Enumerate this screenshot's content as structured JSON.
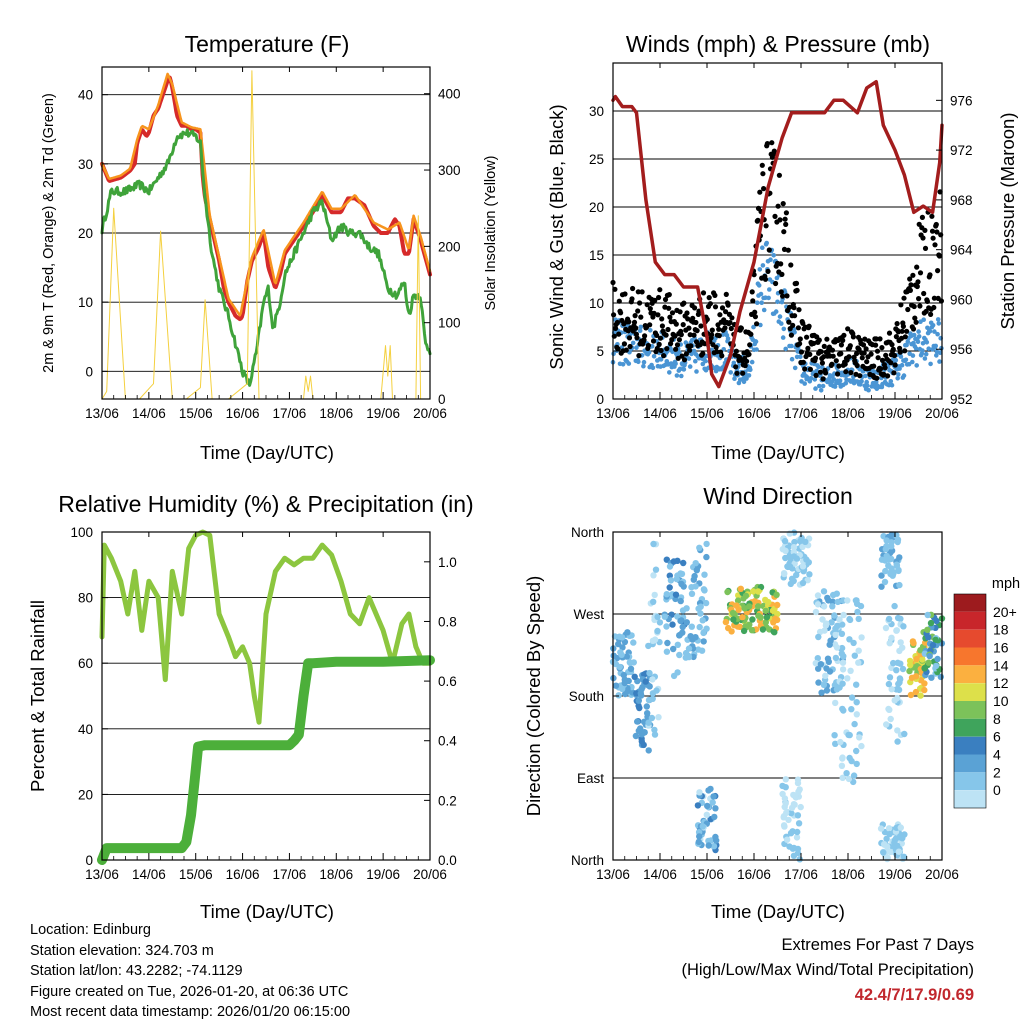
{
  "colors": {
    "temp2m": "#d62a2a",
    "temp9m": "#f7941d",
    "dewpoint": "#3fa33a",
    "solar": "#f4d03f",
    "wind": "#4a95d4",
    "gust": "#000000",
    "pressure": "#a31d1d",
    "rh": "#8cc63f",
    "precip": "#4caf3a",
    "highlight": "#c1272d",
    "speed_scale": [
      "#bde3f5",
      "#86c6ea",
      "#5aa2d5",
      "#3a7fc0",
      "#3fa45c",
      "#7cc25a",
      "#dde04a",
      "#fbb040",
      "#f7762d",
      "#e64a2e",
      "#c8262b",
      "#9d1b1e"
    ]
  },
  "chart_data": [
    {
      "id": "temperature",
      "type": "line",
      "title": "Temperature (F)",
      "xlabel": "Time (Day/UTC)",
      "ylabel": "2m & 9m T (Red, Orange) & 2m Td (Green)",
      "ylabel_right": "Solar Insolation (Yellow)",
      "x_ticks": [
        "13/06",
        "14/06",
        "15/06",
        "16/06",
        "17/06",
        "18/06",
        "19/06",
        "20/06"
      ],
      "xlim": [
        0,
        7
      ],
      "ylim": [
        -4,
        44
      ],
      "y_ticks": [
        0,
        10,
        20,
        30,
        40
      ],
      "y2lim": [
        0,
        435
      ],
      "y2_ticks": [
        0,
        100,
        200,
        300,
        400
      ],
      "series": [
        {
          "name": "2m T",
          "color_key": "temp2m",
          "x": [
            0,
            0.15,
            0.4,
            0.6,
            0.7,
            0.75,
            0.85,
            0.95,
            1.0,
            1.1,
            1.2,
            1.3,
            1.4,
            1.45,
            1.5,
            1.6,
            1.7,
            1.8,
            1.9,
            2.0,
            2.1,
            2.15,
            2.2,
            2.3,
            2.4,
            2.5,
            2.6,
            2.7,
            2.85,
            2.95,
            3.0,
            3.1,
            3.2,
            3.35,
            3.45,
            3.55,
            3.7,
            3.8,
            3.9,
            4.1,
            4.3,
            4.5,
            4.7,
            4.9,
            5.1,
            5.25,
            5.4,
            5.6,
            5.8,
            5.95,
            6.1,
            6.25,
            6.35,
            6.45,
            6.55,
            6.65,
            6.8,
            7.0
          ],
          "values": [
            30,
            27.5,
            28,
            29,
            30,
            33,
            35,
            34,
            34.5,
            37,
            38,
            40,
            42,
            42.5,
            41,
            37,
            35.5,
            35.5,
            35,
            35,
            34.5,
            28,
            25,
            22,
            19,
            16,
            12,
            10,
            8,
            7.5,
            8,
            13,
            16,
            18,
            20,
            15,
            12,
            14,
            17,
            19,
            21,
            23,
            25.5,
            23,
            23,
            25,
            25,
            24,
            21,
            20,
            20,
            22,
            21,
            17,
            17,
            22,
            19,
            14
          ]
        },
        {
          "name": "9m T",
          "color_key": "temp9m",
          "x": [
            0,
            0.15,
            0.4,
            0.6,
            0.75,
            0.85,
            1.0,
            1.2,
            1.4,
            1.5,
            1.7,
            1.9,
            2.1,
            2.3,
            2.5,
            2.7,
            2.95,
            3.2,
            3.45,
            3.7,
            3.9,
            4.3,
            4.7,
            4.9,
            5.1,
            5.4,
            5.8,
            6.1,
            6.35,
            6.55,
            6.65,
            6.8,
            7.0
          ],
          "values": [
            30,
            27.8,
            28.3,
            29.3,
            33.5,
            35.5,
            35,
            38.5,
            43,
            41.5,
            36,
            35.3,
            35,
            22.5,
            16.5,
            10.5,
            8,
            16.5,
            20.5,
            12.5,
            17.5,
            21.5,
            26,
            23.5,
            23.5,
            25.5,
            21.5,
            20.5,
            21.5,
            17.5,
            22.5,
            19.5,
            14.5
          ]
        },
        {
          "name": "2m Td",
          "color_key": "dewpoint",
          "x": [
            0,
            0.2,
            0.5,
            0.8,
            1.0,
            1.2,
            1.4,
            1.6,
            1.8,
            2.0,
            2.1,
            2.2,
            2.35,
            2.5,
            2.7,
            2.85,
            3.0,
            3.15,
            3.3,
            3.45,
            3.55,
            3.65,
            3.8,
            3.9,
            4.1,
            4.3,
            4.5,
            4.7,
            4.9,
            5.1,
            5.3,
            5.5,
            5.7,
            5.9,
            6.1,
            6.3,
            6.45,
            6.55,
            6.65,
            6.8,
            6.9,
            7.0
          ],
          "values": [
            20.5,
            26,
            26,
            27,
            26,
            28,
            30,
            34,
            34.5,
            34,
            33,
            25,
            17,
            12,
            8,
            4,
            0,
            -2,
            3,
            10,
            12,
            6,
            10,
            14,
            17,
            20,
            23,
            24.5,
            19,
            21,
            20,
            20,
            18,
            17,
            12,
            11,
            13,
            8,
            11,
            11,
            4,
            3
          ]
        },
        {
          "name": "Solar",
          "color_key": "solar",
          "axis": "right",
          "x": [
            0,
            0.1,
            0.25,
            0.5,
            0.65,
            0.8,
            1.1,
            1.25,
            1.5,
            1.65,
            1.8,
            2.1,
            2.2,
            2.35,
            2.6,
            2.7,
            3.1,
            3.2,
            3.35,
            3.5,
            3.6,
            4.3,
            4.35,
            4.4,
            4.45,
            4.5,
            5.95,
            6.05,
            6.1,
            6.15,
            6.2,
            6.7,
            6.75,
            6.8,
            7.0
          ],
          "values": [
            0,
            10,
            250,
            0,
            0,
            0,
            20,
            220,
            0,
            0,
            0,
            15,
            130,
            0,
            0,
            0,
            20,
            430,
            0,
            0,
            0,
            0,
            30,
            10,
            30,
            0,
            0,
            70,
            30,
            70,
            0,
            0,
            240,
            0,
            0
          ]
        }
      ]
    },
    {
      "id": "winds",
      "type": "scatter+line",
      "title": "Winds (mph) & Pressure (mb)",
      "xlabel": "Time (Day/UTC)",
      "ylabel": "Sonic Wind & Gust (Blue, Black)",
      "ylabel_right": "Station Pressure (Maroon)",
      "x_ticks": [
        "13/06",
        "14/06",
        "15/06",
        "16/06",
        "17/06",
        "18/06",
        "19/06",
        "20/06"
      ],
      "xlim": [
        0,
        7
      ],
      "ylim": [
        0,
        35
      ],
      "y_ticks": [
        0,
        5,
        10,
        15,
        20,
        25,
        30
      ],
      "y2lim": [
        952,
        979
      ],
      "y2_ticks": [
        952,
        956,
        960,
        964,
        968,
        972,
        976
      ],
      "series": [
        {
          "name": "Sonic Wind",
          "color_key": "wind",
          "x": [
            0,
            0.5,
            1.0,
            1.5,
            2.0,
            2.4,
            2.6,
            2.9,
            3.2,
            3.5,
            4.0,
            4.5,
            5.0,
            5.5,
            6.0,
            6.5,
            7.0
          ],
          "values": [
            6,
            5.5,
            5,
            4,
            5,
            5,
            3,
            3,
            13,
            11,
            3,
            2,
            3,
            2,
            3,
            6,
            6
          ]
        },
        {
          "name": "Gust",
          "color_key": "gust",
          "x": [
            0,
            0.5,
            1.0,
            1.5,
            2.0,
            2.4,
            2.6,
            2.9,
            3.2,
            3.5,
            4.0,
            4.5,
            5.0,
            5.5,
            6.0,
            6.5,
            7.0
          ],
          "values": [
            8.5,
            8,
            8,
            7,
            8,
            8,
            5,
            5,
            20,
            19,
            6,
            4,
            5,
            4,
            5,
            13,
            16
          ]
        },
        {
          "name": "Pressure",
          "color_key": "pressure",
          "axis": "right",
          "x": [
            0,
            0.05,
            0.2,
            0.4,
            0.5,
            0.7,
            0.9,
            1.1,
            1.3,
            1.5,
            1.8,
            2.0,
            2.1,
            2.25,
            2.5,
            2.7,
            3.0,
            3.3,
            3.6,
            3.8,
            4.0,
            4.3,
            4.5,
            4.7,
            4.9,
            5.2,
            5.4,
            5.6,
            5.75,
            6.0,
            6.2,
            6.4,
            6.6,
            6.8,
            6.95,
            7.0
          ],
          "values": [
            976,
            976.3,
            975.5,
            975.5,
            975,
            968,
            963,
            962,
            962,
            961,
            961,
            957,
            954,
            953,
            955.5,
            959,
            963,
            969,
            973,
            975,
            975,
            975,
            975,
            976,
            976,
            975,
            977,
            977.5,
            974,
            972,
            970,
            967,
            967.5,
            967,
            971,
            974
          ]
        }
      ]
    },
    {
      "id": "humidity",
      "type": "line",
      "title": "Relative Humidity (%) & Precipitation (in)",
      "xlabel": "Time (Day/UTC)",
      "ylabel": "Percent & Total Rainfall",
      "x_ticks": [
        "13/06",
        "14/06",
        "15/06",
        "16/06",
        "17/06",
        "18/06",
        "19/06",
        "20/06"
      ],
      "xlim": [
        0,
        7
      ],
      "ylim": [
        0,
        100
      ],
      "y_ticks": [
        0,
        20,
        40,
        60,
        80,
        100
      ],
      "y2lim": [
        0,
        1.1
      ],
      "y2_ticks": [
        "0.0",
        "0.2",
        "0.4",
        "0.6",
        "0.8",
        "1.0"
      ],
      "series": [
        {
          "name": "Relative Humidity",
          "color_key": "rh",
          "x": [
            0,
            0.05,
            0.2,
            0.4,
            0.55,
            0.7,
            0.85,
            1.0,
            1.2,
            1.35,
            1.5,
            1.7,
            1.85,
            2.0,
            2.15,
            2.3,
            2.5,
            2.7,
            2.85,
            3.0,
            3.15,
            3.25,
            3.35,
            3.5,
            3.7,
            3.9,
            4.1,
            4.3,
            4.5,
            4.7,
            4.9,
            5.1,
            5.3,
            5.5,
            5.7,
            5.85,
            6.0,
            6.2,
            6.4,
            6.55,
            6.7,
            6.85,
            7.0
          ],
          "values": [
            68,
            96,
            92,
            85,
            75,
            88,
            70,
            85,
            80,
            55,
            88,
            75,
            95,
            99,
            100,
            99,
            75,
            68,
            62,
            65,
            60,
            50,
            42,
            75,
            88,
            92,
            90,
            92,
            92,
            96,
            93,
            85,
            75,
            72,
            80,
            75,
            70,
            60,
            72,
            75,
            65,
            60,
            60
          ]
        },
        {
          "name": "Total Rainfall",
          "color_key": "precip",
          "axis": "right",
          "x": [
            0,
            0.1,
            1.7,
            1.8,
            1.9,
            2.0,
            2.05,
            2.2,
            4.0,
            4.1,
            4.2,
            4.3,
            4.4,
            4.5,
            5.0,
            6.0,
            7.0
          ],
          "values": [
            0,
            0.04,
            0.04,
            0.06,
            0.15,
            0.3,
            0.38,
            0.385,
            0.385,
            0.4,
            0.42,
            0.55,
            0.66,
            0.66,
            0.665,
            0.665,
            0.67
          ]
        }
      ]
    },
    {
      "id": "direction",
      "type": "scatter",
      "title": "Wind Direction",
      "xlabel": "Time (Day/UTC)",
      "ylabel": "Direction (Colored By Speed)",
      "x_ticks": [
        "13/06",
        "14/06",
        "15/06",
        "16/06",
        "17/06",
        "18/06",
        "19/06",
        "20/06"
      ],
      "xlim": [
        0,
        7
      ],
      "ylim": [
        0,
        360
      ],
      "y_ticks": [
        "North",
        "East",
        "South",
        "West",
        "North"
      ],
      "legend_title": "mph",
      "legend_labels": [
        "20+",
        "18",
        "16",
        "14",
        "12",
        "10",
        "8",
        "6",
        "4",
        "2",
        "0"
      ],
      "clusters": [
        {
          "x": [
            0.0,
            0.45
          ],
          "dir": [
            180,
            250
          ],
          "speed": [
            2,
            6
          ]
        },
        {
          "x": [
            0.45,
            0.8
          ],
          "dir": [
            120,
            210
          ],
          "speed": [
            4,
            7
          ]
        },
        {
          "x": [
            0.75,
            1.0
          ],
          "dir": [
            130,
            360
          ],
          "speed": [
            0,
            4
          ]
        },
        {
          "x": [
            1.1,
            1.6
          ],
          "dir": [
            200,
            330
          ],
          "speed": [
            2,
            7
          ]
        },
        {
          "x": [
            1.6,
            2.0
          ],
          "dir": [
            220,
            350
          ],
          "speed": [
            2,
            5
          ]
        },
        {
          "x": [
            1.8,
            2.2
          ],
          "dir": [
            10,
            80
          ],
          "speed": [
            1,
            7
          ]
        },
        {
          "x": [
            2.4,
            3.5
          ],
          "dir": [
            250,
            300
          ],
          "speed": [
            8,
            16
          ]
        },
        {
          "x": [
            3.6,
            4.2
          ],
          "dir": [
            300,
            360
          ],
          "speed": [
            1,
            4
          ]
        },
        {
          "x": [
            3.6,
            4.0
          ],
          "dir": [
            0,
            90
          ],
          "speed": [
            0,
            3
          ]
        },
        {
          "x": [
            4.3,
            4.9
          ],
          "dir": [
            180,
            300
          ],
          "speed": [
            1,
            6
          ]
        },
        {
          "x": [
            4.7,
            5.3
          ],
          "dir": [
            80,
            290
          ],
          "speed": [
            0,
            4
          ]
        },
        {
          "x": [
            5.7,
            6.2
          ],
          "dir": [
            0,
            40
          ],
          "speed": [
            1,
            3
          ]
        },
        {
          "x": [
            5.7,
            6.1
          ],
          "dir": [
            300,
            360
          ],
          "speed": [
            2,
            5
          ]
        },
        {
          "x": [
            5.8,
            6.2
          ],
          "dir": [
            130,
            280
          ],
          "speed": [
            0,
            4
          ]
        },
        {
          "x": [
            6.3,
            6.65
          ],
          "dir": [
            180,
            240
          ],
          "speed": [
            10,
            16
          ]
        },
        {
          "x": [
            6.6,
            7.0
          ],
          "dir": [
            200,
            270
          ],
          "speed": [
            3,
            12
          ]
        }
      ]
    }
  ],
  "info": {
    "location": "Location: Edinburg",
    "elevation": "Station elevation: 324.703 m",
    "latlon": "Station lat/lon: 43.2282; -74.1129",
    "created": "Figure created on Tue, 2026-01-20, at 06:36 UTC",
    "recent": "Most recent data timestamp: 2026/01/20 06:15:00"
  },
  "extremes": {
    "title": "Extremes For Past 7 Days",
    "subtitle": "(High/Low/Max Wind/Total Precipitation)",
    "values": "42.4/7/17.9/0.69"
  }
}
